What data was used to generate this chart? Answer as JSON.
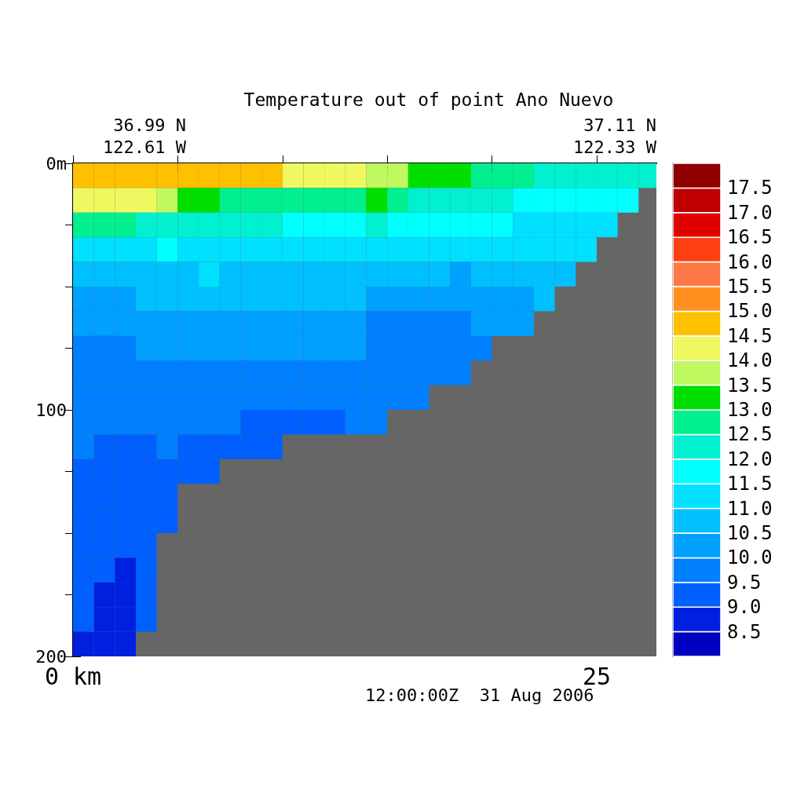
{
  "chart_data": {
    "type": "heatmap",
    "title": "Temperature out of point Ano Nuevo",
    "annotations": [
      "36.99 N",
      "122.61 W",
      "37.11 N",
      "122.33 W",
      "12:00:00Z  31 Aug 2006"
    ],
    "x": [
      0.5,
      1.5,
      2.5,
      3.5,
      4.5,
      5.5,
      6.5,
      7.5,
      8.5,
      9.5,
      10.5,
      11.5,
      12.5,
      13.5,
      14.5,
      15.5,
      16.5,
      17.5,
      18.5,
      19.5,
      20.5,
      21.5,
      22.5,
      23.5,
      24.5,
      25.5,
      26.5,
      27.5
    ],
    "xlim": [
      0,
      27.85
    ],
    "xticks": [
      {
        "value": 0,
        "label": "0 km"
      },
      {
        "value": 5,
        "label": null
      },
      {
        "value": 10,
        "label": null
      },
      {
        "value": 15,
        "label": null
      },
      {
        "value": 20,
        "label": null
      },
      {
        "value": 25,
        "label": "25"
      }
    ],
    "ylim": [
      200,
      0
    ],
    "yticks": [
      {
        "value": 0,
        "label": "0m"
      },
      {
        "value": 25,
        "label": null
      },
      {
        "value": 50,
        "label": null
      },
      {
        "value": 75,
        "label": null
      },
      100,
      {
        "value": 125,
        "label": null
      },
      {
        "value": 150,
        "label": null
      },
      {
        "value": 175,
        "label": null
      },
      200
    ],
    "cells": [
      [
        14.75,
        14.75,
        14.75,
        14.75,
        14.75,
        14.75,
        14.75,
        14.75,
        14.75,
        14.75,
        14.25,
        14.25,
        14.25,
        14.25,
        13.75,
        13.75,
        13.25,
        13.25,
        13.25,
        12.75,
        12.75,
        12.75,
        12.25,
        12.25,
        12.25,
        12.25,
        12.25,
        12.25
      ],
      [
        14.25,
        14.25,
        14.25,
        14.25,
        13.75,
        13.25,
        13.25,
        12.75,
        12.75,
        12.75,
        12.75,
        12.75,
        12.75,
        12.75,
        13.25,
        12.75,
        12.25,
        12.25,
        12.25,
        12.25,
        12.25,
        11.75,
        11.75,
        11.75,
        11.75,
        11.75,
        11.75,
        null
      ],
      [
        12.75,
        12.75,
        12.75,
        12.25,
        12.25,
        12.25,
        12.25,
        12.25,
        12.25,
        12.25,
        11.75,
        11.75,
        11.75,
        11.75,
        12.25,
        11.75,
        11.75,
        11.75,
        11.75,
        11.75,
        11.75,
        11.25,
        11.25,
        11.25,
        11.25,
        11.25,
        null,
        null
      ],
      [
        11.25,
        11.25,
        11.25,
        11.25,
        11.75,
        11.25,
        11.25,
        11.25,
        11.25,
        11.25,
        11.25,
        11.25,
        11.25,
        11.25,
        11.25,
        11.25,
        11.25,
        11.25,
        11.25,
        11.25,
        11.25,
        11.25,
        11.25,
        11.25,
        11.25,
        null,
        null,
        null
      ],
      [
        10.75,
        10.75,
        10.75,
        10.75,
        10.75,
        10.75,
        11.25,
        10.75,
        10.75,
        10.75,
        10.75,
        10.75,
        10.75,
        10.75,
        10.75,
        10.75,
        10.75,
        10.75,
        10.25,
        10.75,
        10.75,
        10.75,
        10.75,
        10.75,
        null,
        null,
        null,
        null
      ],
      [
        10.25,
        10.25,
        10.25,
        10.75,
        10.75,
        10.75,
        10.75,
        10.75,
        10.75,
        10.75,
        10.75,
        10.75,
        10.75,
        10.75,
        10.25,
        10.25,
        10.25,
        10.25,
        10.25,
        10.25,
        10.25,
        10.25,
        10.75,
        null,
        null,
        null,
        null,
        null
      ],
      [
        10.25,
        10.25,
        10.25,
        10.25,
        10.25,
        10.25,
        10.25,
        10.25,
        10.25,
        10.25,
        10.25,
        10.25,
        10.25,
        10.25,
        9.75,
        9.75,
        9.75,
        9.75,
        9.75,
        10.25,
        10.25,
        10.25,
        null,
        null,
        null,
        null,
        null,
        null
      ],
      [
        9.75,
        9.75,
        9.75,
        10.25,
        10.25,
        10.25,
        10.25,
        10.25,
        10.25,
        10.25,
        10.25,
        10.25,
        10.25,
        10.25,
        9.75,
        9.75,
        9.75,
        9.75,
        9.75,
        9.75,
        null,
        null,
        null,
        null,
        null,
        null,
        null,
        null
      ],
      [
        9.75,
        9.75,
        9.75,
        9.75,
        9.75,
        9.75,
        9.75,
        9.75,
        9.75,
        9.75,
        9.75,
        9.75,
        9.75,
        9.75,
        9.75,
        9.75,
        9.75,
        9.75,
        9.75,
        null,
        null,
        null,
        null,
        null,
        null,
        null,
        null,
        null
      ],
      [
        9.75,
        9.75,
        9.75,
        9.75,
        9.75,
        9.75,
        9.75,
        9.75,
        9.75,
        9.75,
        9.75,
        9.75,
        9.75,
        9.75,
        9.75,
        9.75,
        9.75,
        null,
        null,
        null,
        null,
        null,
        null,
        null,
        null,
        null,
        null,
        null
      ],
      [
        9.75,
        9.75,
        9.75,
        9.75,
        9.75,
        9.75,
        9.75,
        9.75,
        9.25,
        9.25,
        9.25,
        9.25,
        9.25,
        9.75,
        9.75,
        null,
        null,
        null,
        null,
        null,
        null,
        null,
        null,
        null,
        null,
        null,
        null,
        null
      ],
      [
        9.75,
        9.25,
        9.25,
        9.25,
        9.75,
        9.25,
        9.25,
        9.25,
        9.25,
        9.25,
        null,
        null,
        null,
        null,
        null,
        null,
        null,
        null,
        null,
        null,
        null,
        null,
        null,
        null,
        null,
        null,
        null,
        null
      ],
      [
        9.25,
        9.25,
        9.25,
        9.25,
        9.25,
        9.25,
        9.25,
        null,
        null,
        null,
        null,
        null,
        null,
        null,
        null,
        null,
        null,
        null,
        null,
        null,
        null,
        null,
        null,
        null,
        null,
        null,
        null,
        null
      ],
      [
        9.25,
        9.25,
        9.25,
        9.25,
        9.25,
        null,
        null,
        null,
        null,
        null,
        null,
        null,
        null,
        null,
        null,
        null,
        null,
        null,
        null,
        null,
        null,
        null,
        null,
        null,
        null,
        null,
        null,
        null
      ],
      [
        9.25,
        9.25,
        9.25,
        9.25,
        9.25,
        null,
        null,
        null,
        null,
        null,
        null,
        null,
        null,
        null,
        null,
        null,
        null,
        null,
        null,
        null,
        null,
        null,
        null,
        null,
        null,
        null,
        null,
        null
      ],
      [
        9.25,
        9.25,
        9.25,
        9.25,
        null,
        null,
        null,
        null,
        null,
        null,
        null,
        null,
        null,
        null,
        null,
        null,
        null,
        null,
        null,
        null,
        null,
        null,
        null,
        null,
        null,
        null,
        null,
        null
      ],
      [
        9.25,
        9.25,
        8.75,
        9.25,
        null,
        null,
        null,
        null,
        null,
        null,
        null,
        null,
        null,
        null,
        null,
        null,
        null,
        null,
        null,
        null,
        null,
        null,
        null,
        null,
        null,
        null,
        null,
        null
      ],
      [
        9.25,
        8.75,
        8.75,
        9.25,
        null,
        null,
        null,
        null,
        null,
        null,
        null,
        null,
        null,
        null,
        null,
        null,
        null,
        null,
        null,
        null,
        null,
        null,
        null,
        null,
        null,
        null,
        null,
        null
      ],
      [
        9.25,
        8.75,
        8.75,
        9.25,
        null,
        null,
        null,
        null,
        null,
        null,
        null,
        null,
        null,
        null,
        null,
        null,
        null,
        null,
        null,
        null,
        null,
        null,
        null,
        null,
        null,
        null,
        null,
        null
      ],
      [
        8.75,
        8.75,
        8.75,
        null,
        null,
        null,
        null,
        null,
        null,
        null,
        null,
        null,
        null,
        null,
        null,
        null,
        null,
        null,
        null,
        null,
        null,
        null,
        null,
        null,
        null,
        null,
        null,
        null
      ]
    ],
    "clim": [
      8,
      18
    ],
    "cticks": [
      8.5,
      {
        "value": 9,
        "label": "9.0"
      },
      9.5,
      {
        "value": 10,
        "label": "10.0"
      },
      10.5,
      {
        "value": 11,
        "label": "11.0"
      },
      11.5,
      {
        "value": 12,
        "label": "12.0"
      },
      12.5,
      {
        "value": 13,
        "label": "13.0"
      },
      13.5,
      {
        "value": 14,
        "label": "14.0"
      },
      14.5,
      {
        "value": 15,
        "label": "15.0"
      },
      15.5,
      {
        "value": 16,
        "label": "16.0"
      },
      16.5,
      {
        "value": 17,
        "label": "17.0"
      },
      17.5
    ],
    "colors": [
      "#0000c0",
      "#0020e0",
      "#0060ff",
      "#0080ff",
      "#00a0ff",
      "#00c0ff",
      "#00e0ff",
      "#00ffff",
      "#00f0d0",
      "#00f090",
      "#00e000",
      "#c0f860",
      "#f0f860",
      "#ffc000",
      "#ff9020",
      "#ff7848",
      "#ff4010",
      "#e00000",
      "#c00000",
      "#900000"
    ],
    "grid": false
  }
}
